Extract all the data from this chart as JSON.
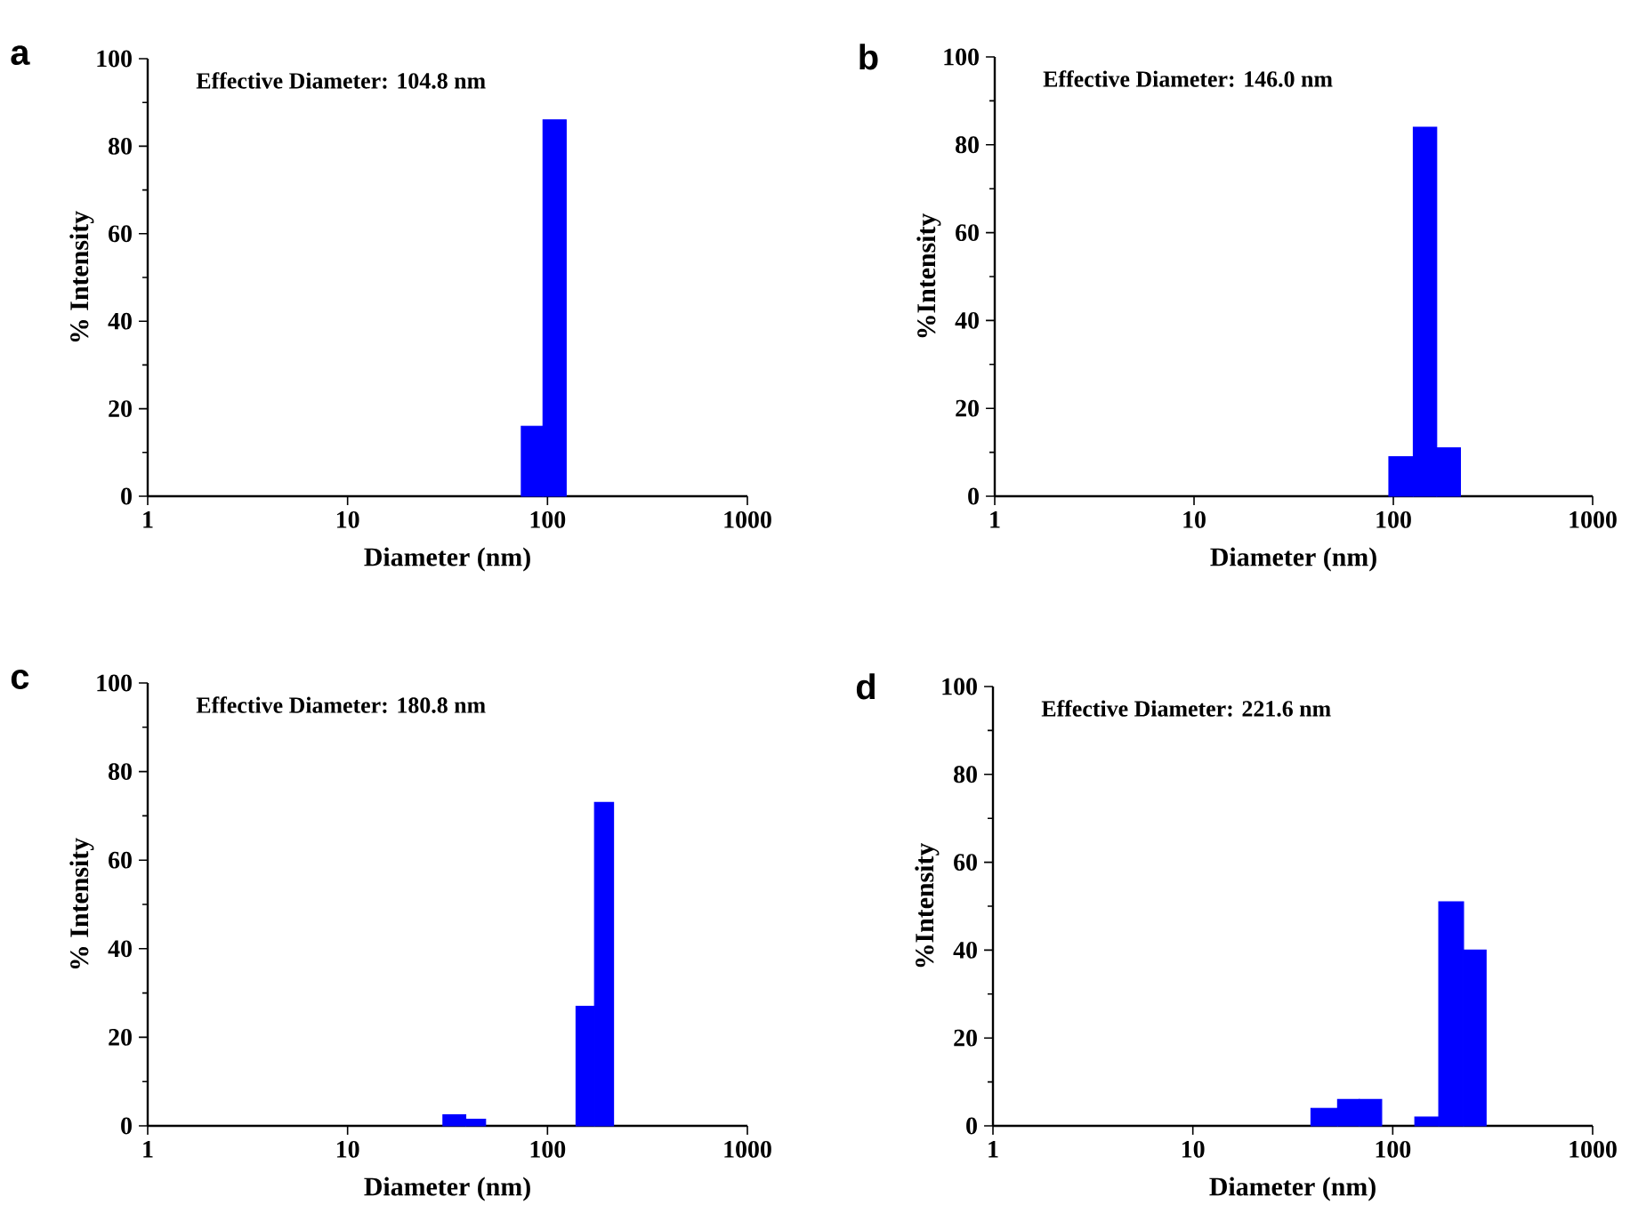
{
  "chart_data": [
    {
      "type": "histogram",
      "title": "a",
      "xlabel": "Diameter (nm)",
      "ylabel": "% Intensity",
      "annotations": [
        "Effective Diameter: 104.8 nm"
      ],
      "color": "#0000ff",
      "log": "x",
      "bins": [
        74,
        95,
        124
      ],
      "values": [
        16,
        86
      ],
      "xlim": [
        1,
        1000
      ],
      "xticks": [
        1,
        10,
        100,
        1000
      ],
      "ylim": [
        0,
        100
      ],
      "yticks": [
        0,
        20,
        40,
        60,
        80,
        100
      ]
    },
    {
      "type": "histogram",
      "title": "b",
      "xlabel": "Diameter (nm)",
      "ylabel": "%Intensity",
      "annotations": [
        "Effective Diameter: 146.0 nm"
      ],
      "color": "#0000ff",
      "log": "x",
      "bins": [
        95,
        126,
        165,
        217
      ],
      "values": [
        9,
        84,
        11
      ],
      "xlim": [
        1,
        1000
      ],
      "xticks": [
        1,
        10,
        100,
        1000
      ],
      "ylim": [
        0,
        100
      ],
      "yticks": [
        0,
        20,
        40,
        60,
        80,
        100
      ]
    },
    {
      "type": "histogram",
      "title": "c",
      "xlabel": "Diameter (nm)",
      "ylabel": "% Intensity",
      "annotations": [
        "Effective Diameter: 180.8 nm"
      ],
      "color": "#0000ff",
      "log": "x",
      "bins": [
        30,
        39,
        49,
        139,
        172,
        214
      ],
      "values": [
        2.5,
        1.5,
        null,
        27,
        73
      ],
      "xlim": [
        1,
        1000
      ],
      "xticks": [
        1,
        10,
        100,
        1000
      ],
      "ylim": [
        0,
        100
      ],
      "yticks": [
        0,
        20,
        40,
        60,
        80,
        100
      ]
    },
    {
      "type": "histogram",
      "title": "d",
      "xlabel": "Diameter (nm)",
      "ylabel": "%Intensity",
      "annotations": [
        "Effective Diameter: 221.6 nm"
      ],
      "color": "#0000ff",
      "log": "x",
      "bins": [
        39,
        53,
        68,
        88,
        129,
        170,
        226,
        293
      ],
      "values": [
        4,
        6,
        6,
        null,
        2,
        51,
        40
      ],
      "xlim": [
        1,
        1000
      ],
      "xticks": [
        1,
        10,
        100,
        1000
      ],
      "ylim": [
        0,
        100
      ],
      "yticks": [
        0,
        20,
        40,
        60,
        80,
        100
      ]
    }
  ]
}
